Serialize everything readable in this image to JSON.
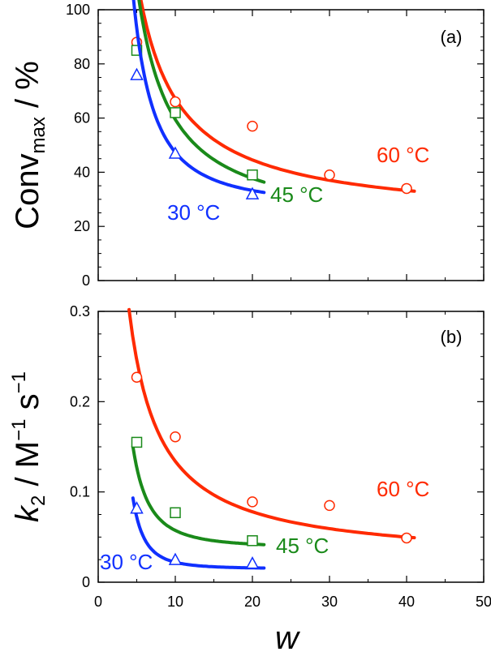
{
  "chart_data": [
    {
      "type": "scatter",
      "panel_label": "(a)",
      "ylabel": {
        "base": "Conv",
        "sub": "max",
        "tail": " / %"
      },
      "xlabel": "",
      "xlim": [
        0,
        50
      ],
      "ylim": [
        0,
        100
      ],
      "xticks": [
        0,
        10,
        20,
        30,
        40,
        50
      ],
      "yticks": [
        0,
        20,
        40,
        60,
        80,
        100
      ],
      "xtick_labels_shown": false,
      "series": [
        {
          "name": "60 °C",
          "color": "#ff2a00",
          "marker": "circle",
          "points": [
            {
              "x": 5,
              "y": 88
            },
            {
              "x": 10,
              "y": 66
            },
            {
              "x": 20,
              "y": 57
            },
            {
              "x": 30,
              "y": 39
            },
            {
              "x": 40,
              "y": 34
            }
          ],
          "fit": {
            "a": 451,
            "p": 1.0,
            "c": 22,
            "from": 4.5,
            "to": 41
          }
        },
        {
          "name": "45 °C",
          "color": "#1a8a1a",
          "marker": "square",
          "points": [
            {
              "x": 5,
              "y": 85
            },
            {
              "x": 10,
              "y": 62
            },
            {
              "x": 20,
              "y": 39
            }
          ],
          "fit": {
            "a": 610,
            "p": 1.2,
            "c": 21,
            "from": 4.5,
            "to": 21.5
          }
        },
        {
          "name": "30 °C",
          "color": "#1030ff",
          "marker": "triangle",
          "points": [
            {
              "x": 5,
              "y": 76
            },
            {
              "x": 10,
              "y": 47
            },
            {
              "x": 20,
              "y": 32
            }
          ],
          "fit": {
            "a": 1020,
            "p": 1.7,
            "c": 27,
            "from": 4.5,
            "to": 21.5
          }
        }
      ]
    },
    {
      "type": "scatter",
      "panel_label": "(b)",
      "ylabel": {
        "base": "k",
        "sub": "2",
        "tail": " / M",
        "sup1": "−1",
        "mid": " s",
        "sup2": "−1"
      },
      "xlabel": "w",
      "xlim": [
        0,
        50
      ],
      "ylim": [
        0,
        0.3
      ],
      "xticks": [
        0,
        10,
        20,
        30,
        40,
        50
      ],
      "yticks": [
        0,
        0.1,
        0.2,
        0.3
      ],
      "ytick_labels": [
        "0",
        "0.1",
        "0.2",
        "0.3"
      ],
      "xtick_labels_shown": true,
      "series": [
        {
          "name": "60 °C",
          "color": "#ff2a00",
          "marker": "circle",
          "points": [
            {
              "x": 5,
              "y": 0.227
            },
            {
              "x": 10,
              "y": 0.161
            },
            {
              "x": 20,
              "y": 0.089
            },
            {
              "x": 30,
              "y": 0.085
            },
            {
              "x": 40,
              "y": 0.049
            }
          ],
          "fit": {
            "a": 1.12,
            "p": 1.0,
            "c": 0.022,
            "from": 4,
            "to": 41
          }
        },
        {
          "name": "45 °C",
          "color": "#1a8a1a",
          "marker": "square",
          "points": [
            {
              "x": 5,
              "y": 0.155
            },
            {
              "x": 10,
              "y": 0.077
            },
            {
              "x": 20,
              "y": 0.046
            }
          ],
          "fit": {
            "a": 3.07,
            "p": 2.2,
            "c": 0.038,
            "from": 4.5,
            "to": 21.5
          }
        },
        {
          "name": "30 °C",
          "color": "#1030ff",
          "marker": "triangle",
          "points": [
            {
              "x": 5,
              "y": 0.082
            },
            {
              "x": 10,
              "y": 0.025
            },
            {
              "x": 20,
              "y": 0.021
            }
          ],
          "fit": {
            "a": 7.13,
            "p": 3.0,
            "c": 0.015,
            "from": 4.5,
            "to": 21.5
          }
        }
      ]
    }
  ]
}
